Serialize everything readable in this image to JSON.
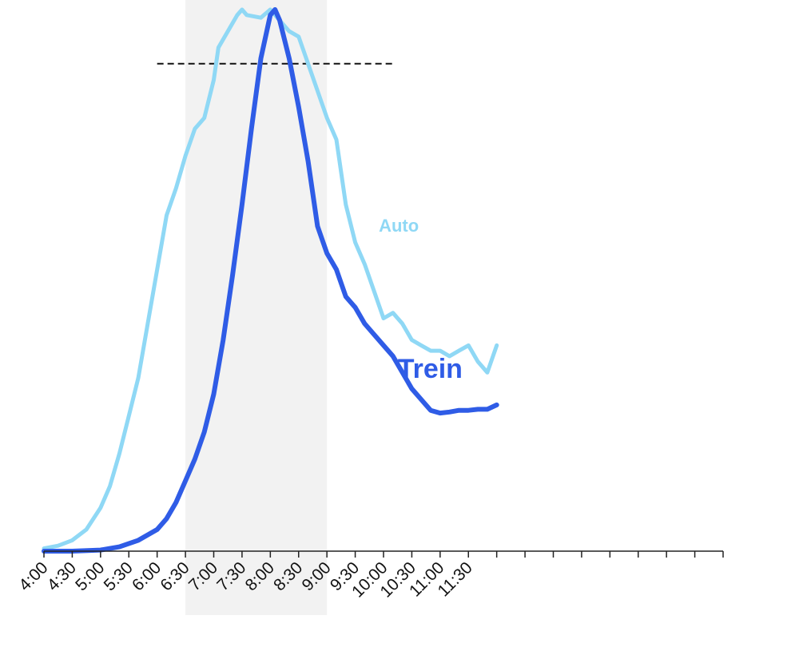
{
  "chart_data": {
    "type": "line",
    "title": "",
    "xlabel": "",
    "ylabel": "",
    "x_ticks": [
      "4:00",
      "4:30",
      "5:00",
      "5:30",
      "6:00",
      "6:30",
      "7:00",
      "7:30",
      "8:00",
      "8:30",
      "9:00",
      "9:30",
      "10:00",
      "10:30",
      "11:00",
      "11:30"
    ],
    "x_minutes": [
      240,
      960
    ],
    "ylim": [
      0,
      1
    ],
    "shaded_period": {
      "from": "6:30",
      "to": "9:00",
      "color": "#f2f2f2"
    },
    "reference_line": {
      "y": 0.9,
      "from": "6:00",
      "to": "10:10",
      "style": "dashed",
      "color": "#111111"
    },
    "grid": false,
    "legend": "inline labels",
    "series": [
      {
        "name": "Auto",
        "color": "#8fd8f5",
        "label_at": {
          "x": "9:55",
          "y": 0.59
        },
        "points": [
          [
            "4:00",
            0.005
          ],
          [
            "4:15",
            0.01
          ],
          [
            "4:30",
            0.02
          ],
          [
            "4:45",
            0.04
          ],
          [
            "5:00",
            0.08
          ],
          [
            "5:10",
            0.12
          ],
          [
            "5:20",
            0.18
          ],
          [
            "5:30",
            0.25
          ],
          [
            "5:40",
            0.32
          ],
          [
            "5:50",
            0.42
          ],
          [
            "6:00",
            0.52
          ],
          [
            "6:10",
            0.62
          ],
          [
            "6:20",
            0.67
          ],
          [
            "6:30",
            0.73
          ],
          [
            "6:40",
            0.78
          ],
          [
            "6:50",
            0.8
          ],
          [
            "7:00",
            0.87
          ],
          [
            "7:05",
            0.93
          ],
          [
            "7:15",
            0.96
          ],
          [
            "7:25",
            0.99
          ],
          [
            "7:30",
            1.0
          ],
          [
            "7:35",
            0.99
          ],
          [
            "7:50",
            0.985
          ],
          [
            "8:00",
            1.0
          ],
          [
            "8:10",
            0.98
          ],
          [
            "8:20",
            0.96
          ],
          [
            "8:30",
            0.95
          ],
          [
            "8:40",
            0.9
          ],
          [
            "8:50",
            0.85
          ],
          [
            "9:00",
            0.8
          ],
          [
            "9:10",
            0.76
          ],
          [
            "9:20",
            0.64
          ],
          [
            "9:30",
            0.57
          ],
          [
            "9:40",
            0.53
          ],
          [
            "9:50",
            0.48
          ],
          [
            "10:00",
            0.43
          ],
          [
            "10:10",
            0.44
          ],
          [
            "10:20",
            0.42
          ],
          [
            "10:30",
            0.39
          ],
          [
            "10:40",
            0.38
          ],
          [
            "10:50",
            0.37
          ],
          [
            "11:00",
            0.37
          ],
          [
            "11:10",
            0.36
          ],
          [
            "11:20",
            0.37
          ],
          [
            "11:30",
            0.38
          ],
          [
            "11:40",
            0.35
          ],
          [
            "11:50",
            0.33
          ],
          [
            "12:00",
            0.38
          ]
        ]
      },
      {
        "name": "Trein",
        "color": "#2f5ce6",
        "label_at": {
          "x": "10:15",
          "y": 0.32
        },
        "points": [
          [
            "4:00",
            0.0
          ],
          [
            "4:30",
            0.0
          ],
          [
            "5:00",
            0.002
          ],
          [
            "5:20",
            0.008
          ],
          [
            "5:40",
            0.02
          ],
          [
            "6:00",
            0.04
          ],
          [
            "6:10",
            0.06
          ],
          [
            "6:20",
            0.09
          ],
          [
            "6:30",
            0.13
          ],
          [
            "6:40",
            0.17
          ],
          [
            "6:50",
            0.22
          ],
          [
            "7:00",
            0.29
          ],
          [
            "7:10",
            0.39
          ],
          [
            "7:20",
            0.51
          ],
          [
            "7:30",
            0.64
          ],
          [
            "7:40",
            0.78
          ],
          [
            "7:50",
            0.91
          ],
          [
            "8:00",
            0.99
          ],
          [
            "8:05",
            1.0
          ],
          [
            "8:10",
            0.98
          ],
          [
            "8:20",
            0.91
          ],
          [
            "8:30",
            0.82
          ],
          [
            "8:40",
            0.72
          ],
          [
            "8:50",
            0.6
          ],
          [
            "9:00",
            0.55
          ],
          [
            "9:10",
            0.52
          ],
          [
            "9:20",
            0.47
          ],
          [
            "9:30",
            0.45
          ],
          [
            "9:40",
            0.42
          ],
          [
            "9:50",
            0.4
          ],
          [
            "10:00",
            0.38
          ],
          [
            "10:10",
            0.36
          ],
          [
            "10:20",
            0.33
          ],
          [
            "10:30",
            0.3
          ],
          [
            "10:40",
            0.28
          ],
          [
            "10:50",
            0.26
          ],
          [
            "11:00",
            0.255
          ],
          [
            "11:10",
            0.257
          ],
          [
            "11:20",
            0.26
          ],
          [
            "11:30",
            0.26
          ],
          [
            "11:40",
            0.262
          ],
          [
            "11:50",
            0.262
          ],
          [
            "12:00",
            0.27
          ]
        ]
      }
    ]
  }
}
